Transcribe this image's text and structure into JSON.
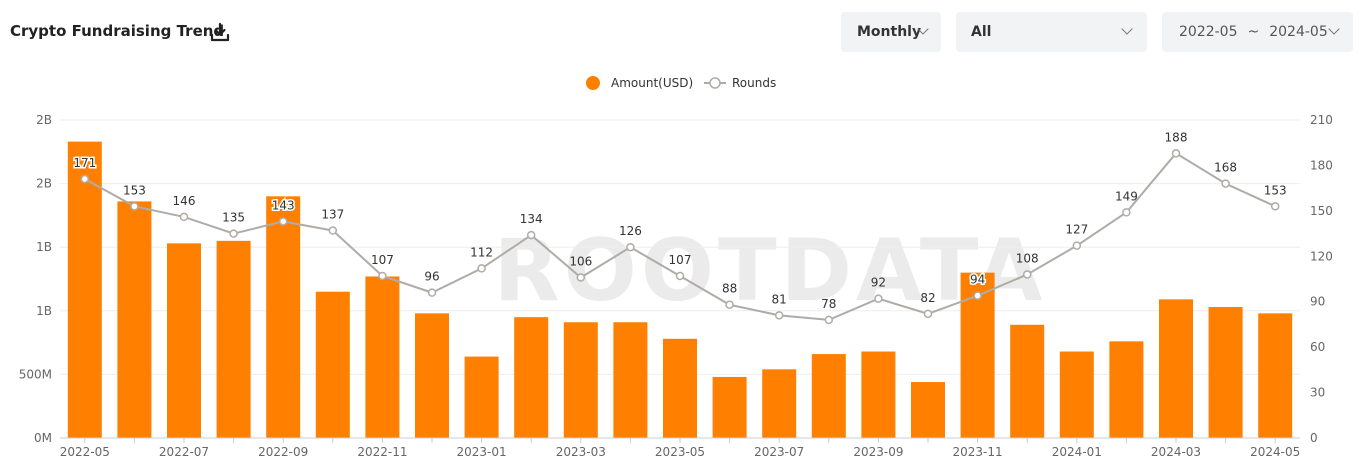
{
  "header": {
    "title": "Crypto Fundraising Trend",
    "download_icon": "download-icon"
  },
  "controls": {
    "period": "Monthly",
    "category": "All",
    "date_from": "2022-05",
    "date_sep": "~",
    "date_to": "2024-05"
  },
  "watermark": "ROOTDATA",
  "colors": {
    "bar": "#ff8000",
    "line": "#b0aba6",
    "grid": "#eeeeee",
    "axis_text": "#666666"
  },
  "chart_data": {
    "type": "bar",
    "categories": [
      "2022-05",
      "2022-06",
      "2022-07",
      "2022-08",
      "2022-09",
      "2022-10",
      "2022-11",
      "2022-12",
      "2023-01",
      "2023-02",
      "2023-03",
      "2023-04",
      "2023-05",
      "2023-06",
      "2023-07",
      "2023-08",
      "2023-09",
      "2023-10",
      "2023-11",
      "2023-12",
      "2024-01",
      "2024-02",
      "2024-03",
      "2024-04",
      "2024-05"
    ],
    "x_tick_labels": [
      "2022-05",
      "2022-07",
      "2022-09",
      "2022-11",
      "2023-01",
      "2023-03",
      "2023-05",
      "2023-07",
      "2023-09",
      "2023-11",
      "2024-01",
      "2024-03",
      "2024-05"
    ],
    "legend": {
      "position": "top-center"
    },
    "grid": true,
    "series": [
      {
        "name": "Amount(USD)",
        "kind": "bar",
        "axis": "left",
        "values": [
          2330000000,
          1860000000,
          1530000000,
          1550000000,
          1900000000,
          1150000000,
          1270000000,
          980000000,
          640000000,
          950000000,
          910000000,
          910000000,
          780000000,
          480000000,
          540000000,
          660000000,
          680000000,
          440000000,
          1300000000,
          890000000,
          680000000,
          760000000,
          1090000000,
          1030000000,
          980000000
        ]
      },
      {
        "name": "Rounds",
        "kind": "line",
        "axis": "right",
        "values": [
          171,
          153,
          146,
          135,
          143,
          137,
          107,
          96,
          112,
          134,
          106,
          126,
          107,
          88,
          81,
          78,
          92,
          82,
          94,
          108,
          127,
          149,
          188,
          168,
          153
        ]
      }
    ],
    "y_left": {
      "ticks": [
        "0M",
        "500M",
        "1B",
        "1B",
        "2B",
        "2B"
      ],
      "ylim": [
        0,
        2500000000
      ]
    },
    "y_right": {
      "ticks": [
        "0",
        "30",
        "60",
        "90",
        "120",
        "150",
        "180",
        "210"
      ],
      "ylim": [
        0,
        210
      ]
    }
  }
}
